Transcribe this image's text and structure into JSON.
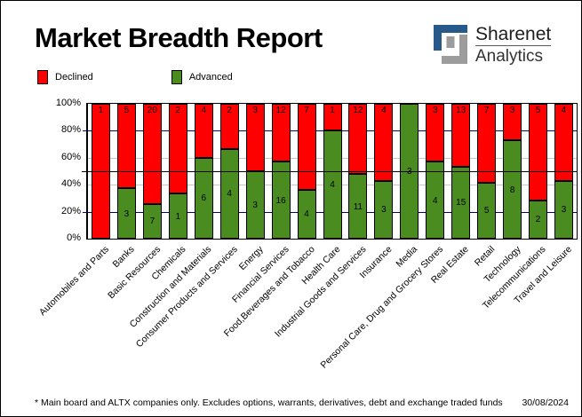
{
  "title": "Market Breadth Report",
  "logo": {
    "name": "Sharenet",
    "sub": "Analytics",
    "blue": "#27598b",
    "gray": "#9c9c9c"
  },
  "legend": {
    "declined_label": "Declined",
    "advanced_label": "Advanced"
  },
  "footer": {
    "note": "* Main board and ALTX companies only. Excludes options, warrants, derivatives, debt and exchange traded funds",
    "date": "30/08/2024"
  },
  "colors": {
    "declined": "#ff0000",
    "advanced": "#4a8c1f",
    "grid_major": "#000080",
    "grid_minor": "#c6c6c6",
    "reference_line": "#000000"
  },
  "chart_data": {
    "type": "bar",
    "stacked": true,
    "normalized": "percent",
    "title": "Market Breadth Report",
    "categories": [
      "Automobiles and Parts",
      "Banks",
      "Basic Resources",
      "Chemicals",
      "Construction and Materials",
      "Consumer Products and Services",
      "Energy",
      "Financial Services",
      "Food,Beverages and Tobacco",
      "Health Care",
      "Industrial Goods and Services",
      "Insurance",
      "Media",
      "Personal Care, Drug and Grocery Stores",
      "Real Estate",
      "Retail",
      "Technology",
      "Telecommunications",
      "Travel and Leisure"
    ],
    "series": [
      {
        "name": "Declined",
        "color": "#ff0000",
        "values": [
          1,
          5,
          20,
          2,
          4,
          2,
          3,
          12,
          7,
          1,
          12,
          4,
          0,
          3,
          13,
          7,
          3,
          5,
          4
        ]
      },
      {
        "name": "Advanced",
        "color": "#4a8c1f",
        "values": [
          0,
          3,
          7,
          1,
          6,
          4,
          3,
          16,
          4,
          4,
          11,
          3,
          3,
          4,
          15,
          5,
          8,
          2,
          3
        ]
      }
    ],
    "y_ticks": [
      "100%",
      "80%",
      "60%",
      "40%",
      "20%",
      "0%"
    ],
    "ylim": [
      0,
      100
    ],
    "gridlines": {
      "major_pct": [
        20,
        80
      ],
      "minor_pct": [
        40,
        60
      ],
      "reference_pct": 50
    },
    "legend_position": "top-left"
  }
}
